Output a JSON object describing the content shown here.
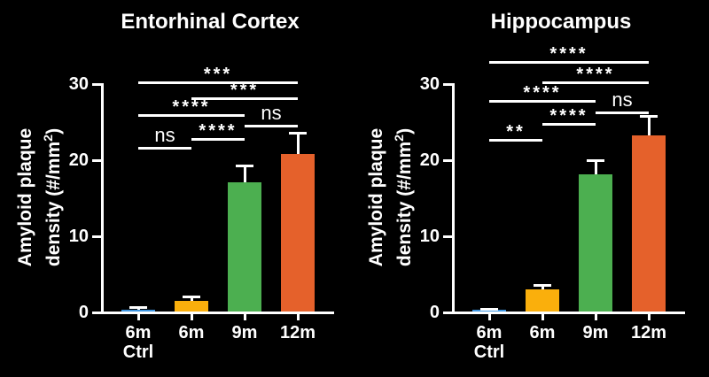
{
  "figure": {
    "background": "#000000",
    "axis_color": "#FFFFFF",
    "text_color": "#FFFFFF"
  },
  "chart_data": [
    {
      "type": "bar",
      "title": "Entorhinal Cortex",
      "ylabel_lines": [
        "Amyloid plaque",
        "density (#/mm²)"
      ],
      "categories": [
        "6m\nCtrl",
        "6m",
        "9m",
        "12m"
      ],
      "values": [
        0.4,
        1.5,
        17.1,
        20.8
      ],
      "errors": [
        0.2,
        0.5,
        2.1,
        2.8
      ],
      "bar_colors": [
        "#3E95E0",
        "#FAAF0C",
        "#4CAF50",
        "#E5612B"
      ],
      "ylim": [
        0,
        30
      ],
      "yticks": [
        0,
        10,
        20,
        30
      ],
      "grid": false,
      "legend": "none",
      "significance": [
        {
          "pair": [
            0,
            1
          ],
          "label": "ns",
          "y": 21.8
        },
        {
          "pair": [
            1,
            2
          ],
          "label": "****",
          "y": 22.9
        },
        {
          "pair": [
            2,
            3
          ],
          "label": "ns",
          "y": 24.7
        },
        {
          "pair": [
            0,
            2
          ],
          "label": "****",
          "y": 26.0
        },
        {
          "pair": [
            1,
            3
          ],
          "label": "***",
          "y": 28.2
        },
        {
          "pair": [
            0,
            3
          ],
          "label": "***",
          "y": 30.4
        }
      ]
    },
    {
      "type": "bar",
      "title": "Hippocampus",
      "ylabel_lines": [
        "Amyloid plaque",
        "density (#/mm²)"
      ],
      "categories": [
        "6m\nCtrl",
        "6m",
        "9m",
        "12m"
      ],
      "values": [
        0.3,
        3.0,
        18.1,
        23.3
      ],
      "errors": [
        0.1,
        0.5,
        1.9,
        2.4
      ],
      "bar_colors": [
        "#3E95E0",
        "#FAAF0C",
        "#4CAF50",
        "#E5612B"
      ],
      "ylim": [
        0,
        30
      ],
      "yticks": [
        0,
        10,
        20,
        30
      ],
      "grid": false,
      "legend": "none",
      "significance": [
        {
          "pair": [
            0,
            1
          ],
          "label": "**",
          "y": 22.8
        },
        {
          "pair": [
            1,
            2
          ],
          "label": "****",
          "y": 24.9
        },
        {
          "pair": [
            2,
            3
          ],
          "label": "ns",
          "y": 26.4
        },
        {
          "pair": [
            0,
            2
          ],
          "label": "****",
          "y": 27.9
        },
        {
          "pair": [
            1,
            3
          ],
          "label": "****",
          "y": 30.3
        },
        {
          "pair": [
            0,
            3
          ],
          "label": "****",
          "y": 33.0
        }
      ]
    }
  ]
}
